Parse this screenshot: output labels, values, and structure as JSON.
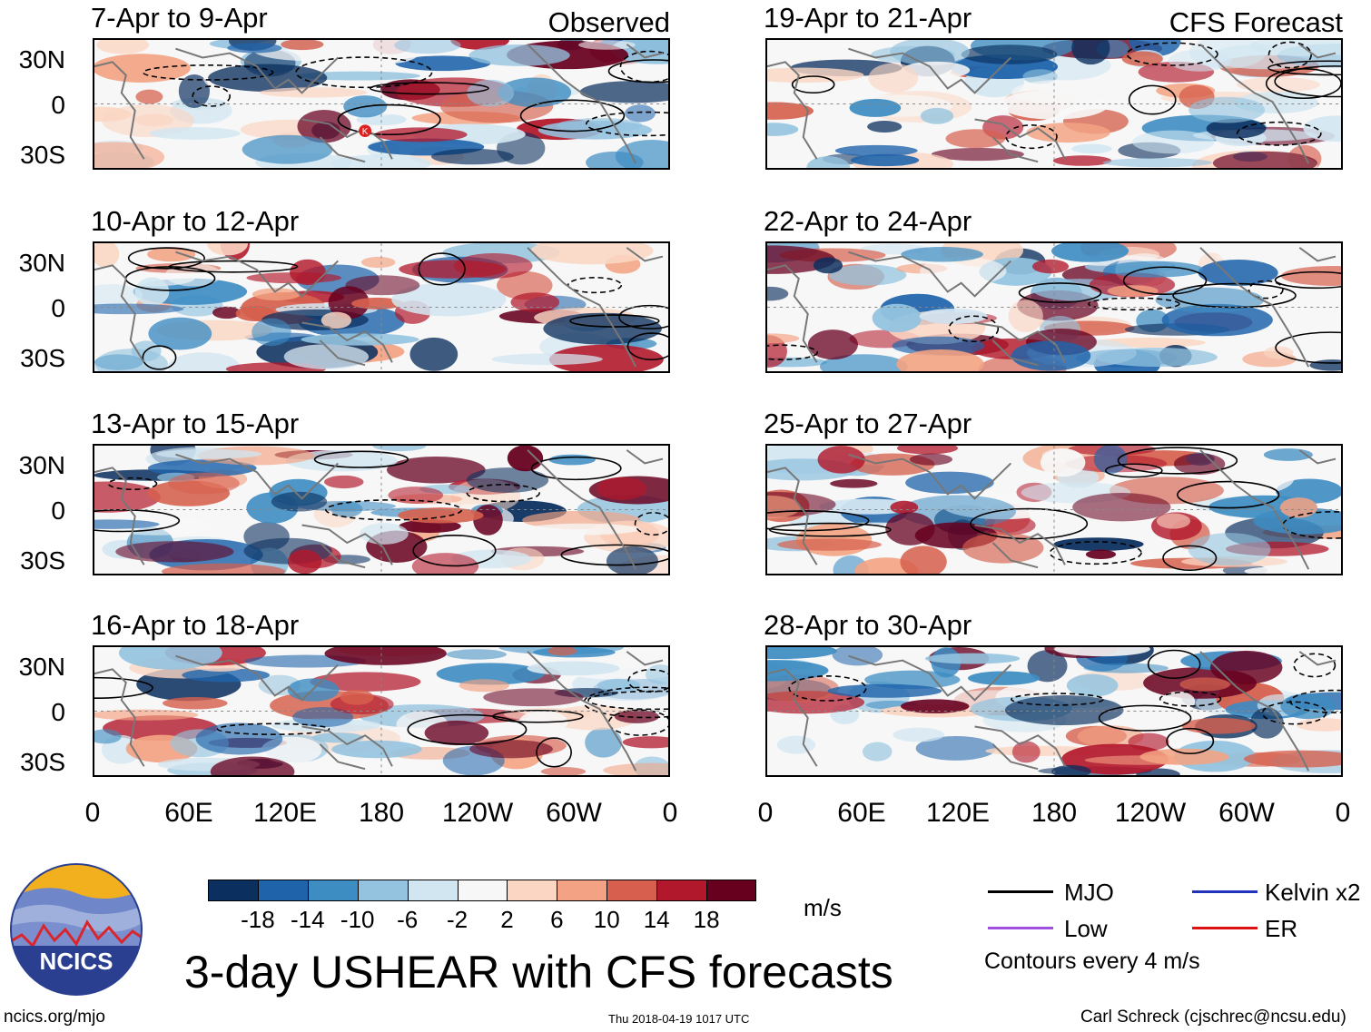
{
  "panels": [
    {
      "title": "7-Apr to 9-Apr",
      "tag": "Observed",
      "side": "left",
      "row": 0
    },
    {
      "title": "10-Apr to 12-Apr",
      "tag": "",
      "side": "left",
      "row": 1
    },
    {
      "title": "13-Apr to 15-Apr",
      "tag": "",
      "side": "left",
      "row": 2
    },
    {
      "title": "16-Apr to 18-Apr",
      "tag": "",
      "side": "left",
      "row": 3
    },
    {
      "title": "19-Apr to 21-Apr",
      "tag": "CFS Forecast",
      "side": "right",
      "row": 0
    },
    {
      "title": "22-Apr to 24-Apr",
      "tag": "",
      "side": "right",
      "row": 1
    },
    {
      "title": "25-Apr to 27-Apr",
      "tag": "",
      "side": "right",
      "row": 2
    },
    {
      "title": "28-Apr to 30-Apr",
      "tag": "",
      "side": "right",
      "row": 3
    }
  ],
  "lat_ticks": [
    "30N",
    "0",
    "30S"
  ],
  "lon_ticks": [
    "0",
    "60E",
    "120E",
    "180",
    "120W",
    "60W",
    "0"
  ],
  "colorbar": {
    "colors": [
      "#0b2f5e",
      "#1f64ab",
      "#3d8cc2",
      "#93c3df",
      "#d2e6f1",
      "#f7f7f7",
      "#fbd6c3",
      "#f3a383",
      "#d6604d",
      "#b2182b",
      "#67001f"
    ],
    "labels": [
      "-18",
      "-14",
      "-10",
      "-6",
      "-2",
      "2",
      "6",
      "10",
      "14",
      "18"
    ],
    "units": "m/s"
  },
  "legend": {
    "items": [
      {
        "label": "MJO",
        "color": "#000000"
      },
      {
        "label": "Kelvin x2",
        "color": "#2233bb"
      },
      {
        "label": "Low",
        "color": "#a04fe0"
      },
      {
        "label": "ER",
        "color": "#dd1111"
      }
    ],
    "note": "Contours every 4 m/s"
  },
  "main_title": "3-day USHEAR with CFS forecasts",
  "logo_text": "NCICS",
  "storm_marker": "K",
  "footer": {
    "left": "ncics.org/mjo",
    "center": "Thu 2018-04-19 1017 UTC",
    "right": "Carl Schreck (cjschrec@ncsu.edu)"
  }
}
